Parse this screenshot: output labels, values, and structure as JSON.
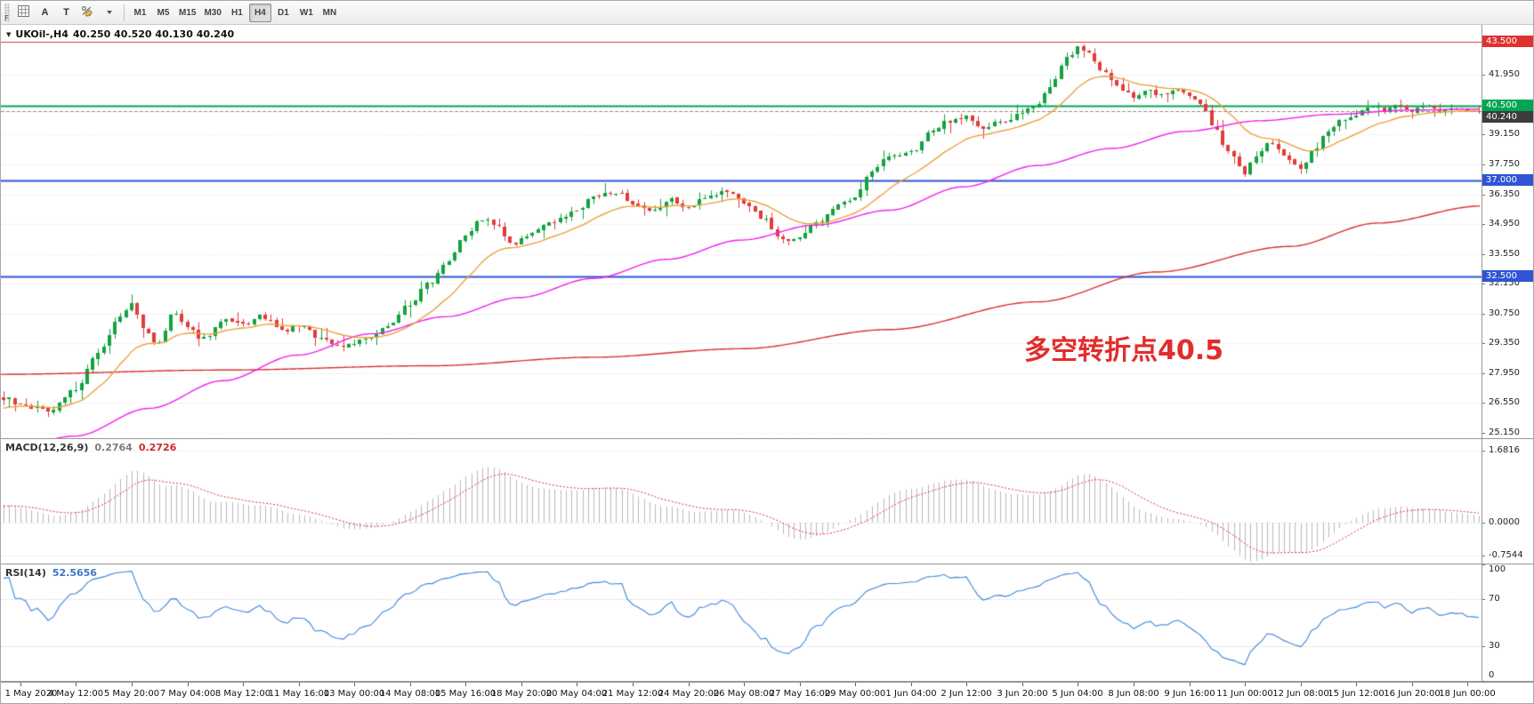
{
  "icons": {
    "chart_dropdown": "▼"
  },
  "colors": {
    "bull": "#13a33f",
    "bear": "#e23b3b",
    "ma_fast": "#e8a33d",
    "ma_mid": "#ef1fef",
    "ma_slow": "#d93030",
    "macd_histogram": "#b8b8b8",
    "macd_signal": "#e03131",
    "rsi_line": "#3e86d8",
    "grid": "#d9d9d9",
    "current_price_line": "#8c8c8c",
    "annotation": "#e32b2b"
  },
  "toolbar": {
    "corner_label": "F",
    "arrow_tool_label": "A",
    "text_tool_label": "T",
    "timeframes": [
      "M1",
      "M5",
      "M15",
      "M30",
      "H1",
      "H4",
      "D1",
      "W1",
      "MN"
    ],
    "active_timeframe": "H4"
  },
  "chart": {
    "title_symbol": "UKOil-,H4",
    "title_ohlc": "40.250 40.520 40.130 40.240",
    "annotation_text": "多空转折点40.5",
    "price_ticks": [
      {
        "label": "41.950",
        "value": 41.95
      },
      {
        "label": "39.150",
        "value": 39.15
      },
      {
        "label": "37.750",
        "value": 37.75
      },
      {
        "label": "36.350",
        "value": 36.35
      },
      {
        "label": "34.950",
        "value": 34.95
      },
      {
        "label": "33.550",
        "value": 33.55
      },
      {
        "label": "32.150",
        "value": 32.15
      },
      {
        "label": "30.750",
        "value": 30.75
      },
      {
        "label": "29.350",
        "value": 29.35
      },
      {
        "label": "27.950",
        "value": 27.95
      },
      {
        "label": "26.550",
        "value": 26.55
      },
      {
        "label": "25.150",
        "value": 25.15
      }
    ],
    "levels": [
      {
        "label": "43.500",
        "value": 43.5,
        "color": "#e03131",
        "width": 1
      },
      {
        "label": "40.500",
        "value": 40.5,
        "color": "#00a651",
        "width": 2
      },
      {
        "label": "37.000",
        "value": 37.0,
        "color": "#2f55d4",
        "width": 2
      },
      {
        "label": "32.500",
        "value": 32.5,
        "color": "#2f55d4",
        "width": 2
      }
    ],
    "current_price": {
      "label": "40.240",
      "value": 40.24,
      "badge": "#3c3c3c"
    }
  },
  "macd": {
    "label": "MACD(12,26,9)",
    "value_main": "0.2764",
    "value_signal": "0.2726",
    "params": {
      "fast": 12,
      "slow": 26,
      "signal": 9
    },
    "axis": [
      {
        "label": "1.6816",
        "value": 1.6816
      },
      {
        "label": "0.0000",
        "value": 0
      },
      {
        "label": "-0.7544",
        "value": -0.7544
      }
    ],
    "range": [
      -0.95,
      1.95
    ]
  },
  "rsi": {
    "label": "RSI(14)",
    "value": "52.5656",
    "period": 14,
    "axis": [
      {
        "label": "100",
        "value": 100
      },
      {
        "label": "70",
        "value": 70
      },
      {
        "label": "30",
        "value": 30
      },
      {
        "label": "0",
        "value": 0
      }
    ],
    "levels": [
      70,
      30
    ],
    "range": [
      0,
      100
    ]
  },
  "time_axis": {
    "bars_per_label": 10,
    "first_label_bar": 3,
    "labels": [
      "1 May 2020",
      "4 May 12:00",
      "5 May 20:00",
      "7 May 04:00",
      "8 May 12:00",
      "11 May 16:00",
      "13 May 00:00",
      "14 May 08:00",
      "15 May 16:00",
      "18 May 20:00",
      "20 May 04:00",
      "21 May 12:00",
      "24 May 20:00",
      "26 May 08:00",
      "27 May 16:00",
      "29 May 00:00",
      "1 Jun 04:00",
      "2 Jun 12:00",
      "3 Jun 20:00",
      "5 Jun 04:00",
      "8 Jun 08:00",
      "9 Jun 16:00",
      "11 Jun 00:00",
      "12 Jun 08:00",
      "15 Jun 12:00",
      "16 Jun 20:00",
      "18 Jun 00:00"
    ]
  },
  "chart_data": {
    "type": "candlestick",
    "symbol": "UKOil-",
    "timeframe": "H4",
    "candle_count": 266,
    "y_range": [
      24.9,
      44.3
    ],
    "ohlc_current": {
      "open": 40.25,
      "high": 40.52,
      "low": 40.13,
      "close": 40.24
    },
    "levels": {
      "resistance": 43.5,
      "pivot": 40.5,
      "supports": [
        37.0,
        32.5
      ]
    },
    "price_waypoints": [
      [
        0,
        26.8
      ],
      [
        0.011,
        26.5
      ],
      [
        0.03,
        26.2
      ],
      [
        0.049,
        27.2
      ],
      [
        0.065,
        29.0
      ],
      [
        0.078,
        30.5
      ],
      [
        0.087,
        31.2
      ],
      [
        0.095,
        30.0
      ],
      [
        0.105,
        29.3
      ],
      [
        0.115,
        30.8
      ],
      [
        0.125,
        30.0
      ],
      [
        0.135,
        29.6
      ],
      [
        0.15,
        30.4
      ],
      [
        0.162,
        30.2
      ],
      [
        0.175,
        30.6
      ],
      [
        0.19,
        29.9
      ],
      [
        0.2,
        30.2
      ],
      [
        0.215,
        29.6
      ],
      [
        0.228,
        29.2
      ],
      [
        0.238,
        29.4
      ],
      [
        0.25,
        29.6
      ],
      [
        0.262,
        30.3
      ],
      [
        0.275,
        31.2
      ],
      [
        0.29,
        32.3
      ],
      [
        0.3,
        33.2
      ],
      [
        0.313,
        34.5
      ],
      [
        0.325,
        35.2
      ],
      [
        0.335,
        34.8
      ],
      [
        0.345,
        33.9
      ],
      [
        0.351,
        34.2
      ],
      [
        0.365,
        34.8
      ],
      [
        0.38,
        35.3
      ],
      [
        0.389,
        35.6
      ],
      [
        0.4,
        36.2
      ],
      [
        0.415,
        36.5
      ],
      [
        0.426,
        35.8
      ],
      [
        0.44,
        35.5
      ],
      [
        0.452,
        36.1
      ],
      [
        0.464,
        35.7
      ],
      [
        0.478,
        36.3
      ],
      [
        0.49,
        36.5
      ],
      [
        0.502,
        36.0
      ],
      [
        0.515,
        35.2
      ],
      [
        0.528,
        34.2
      ],
      [
        0.54,
        34.4
      ],
      [
        0.553,
        35.1
      ],
      [
        0.565,
        35.8
      ],
      [
        0.577,
        36.1
      ],
      [
        0.588,
        37.5
      ],
      [
        0.6,
        38.1
      ],
      [
        0.615,
        38.3
      ],
      [
        0.628,
        39.2
      ],
      [
        0.64,
        39.8
      ],
      [
        0.653,
        40.0
      ],
      [
        0.663,
        39.4
      ],
      [
        0.675,
        39.7
      ],
      [
        0.691,
        40.1
      ],
      [
        0.7,
        40.6
      ],
      [
        0.712,
        41.6
      ],
      [
        0.72,
        42.7
      ],
      [
        0.728,
        43.2
      ],
      [
        0.736,
        42.9
      ],
      [
        0.745,
        42.2
      ],
      [
        0.755,
        41.4
      ],
      [
        0.766,
        40.9
      ],
      [
        0.776,
        41.2
      ],
      [
        0.786,
        41.0
      ],
      [
        0.796,
        41.3
      ],
      [
        0.804,
        40.9
      ],
      [
        0.812,
        40.5
      ],
      [
        0.82,
        39.6
      ],
      [
        0.83,
        38.4
      ],
      [
        0.841,
        37.4
      ],
      [
        0.85,
        38.2
      ],
      [
        0.858,
        38.7
      ],
      [
        0.866,
        38.3
      ],
      [
        0.872,
        37.9
      ],
      [
        0.879,
        37.6
      ],
      [
        0.888,
        38.4
      ],
      [
        0.897,
        39.2
      ],
      [
        0.907,
        39.8
      ],
      [
        0.917,
        40.1
      ],
      [
        0.926,
        40.5
      ],
      [
        0.935,
        40.3
      ],
      [
        0.945,
        40.6
      ],
      [
        0.955,
        40.3
      ],
      [
        0.965,
        40.5
      ],
      [
        0.975,
        40.2
      ],
      [
        0.985,
        40.4
      ],
      [
        1,
        40.24
      ]
    ],
    "ma_fast_period": 16,
    "ma_mid_waypoints": [
      [
        0,
        24.3
      ],
      [
        0.05,
        25.0
      ],
      [
        0.1,
        26.3
      ],
      [
        0.15,
        27.6
      ],
      [
        0.2,
        28.8
      ],
      [
        0.25,
        29.8
      ],
      [
        0.3,
        30.6
      ],
      [
        0.35,
        31.5
      ],
      [
        0.4,
        32.4
      ],
      [
        0.45,
        33.3
      ],
      [
        0.5,
        34.2
      ],
      [
        0.55,
        34.9
      ],
      [
        0.6,
        35.6
      ],
      [
        0.65,
        36.7
      ],
      [
        0.7,
        37.7
      ],
      [
        0.75,
        38.5
      ],
      [
        0.8,
        39.3
      ],
      [
        0.85,
        39.8
      ],
      [
        0.9,
        40.1
      ],
      [
        0.95,
        40.3
      ],
      [
        1,
        40.35
      ]
    ],
    "ma_slow_waypoints": [
      [
        0,
        27.9
      ],
      [
        0.15,
        28.1
      ],
      [
        0.29,
        28.3
      ],
      [
        0.4,
        28.7
      ],
      [
        0.5,
        29.1
      ],
      [
        0.6,
        30.0
      ],
      [
        0.7,
        31.3
      ],
      [
        0.78,
        32.7
      ],
      [
        0.87,
        33.9
      ],
      [
        0.93,
        35.0
      ],
      [
        1,
        35.8
      ]
    ]
  }
}
